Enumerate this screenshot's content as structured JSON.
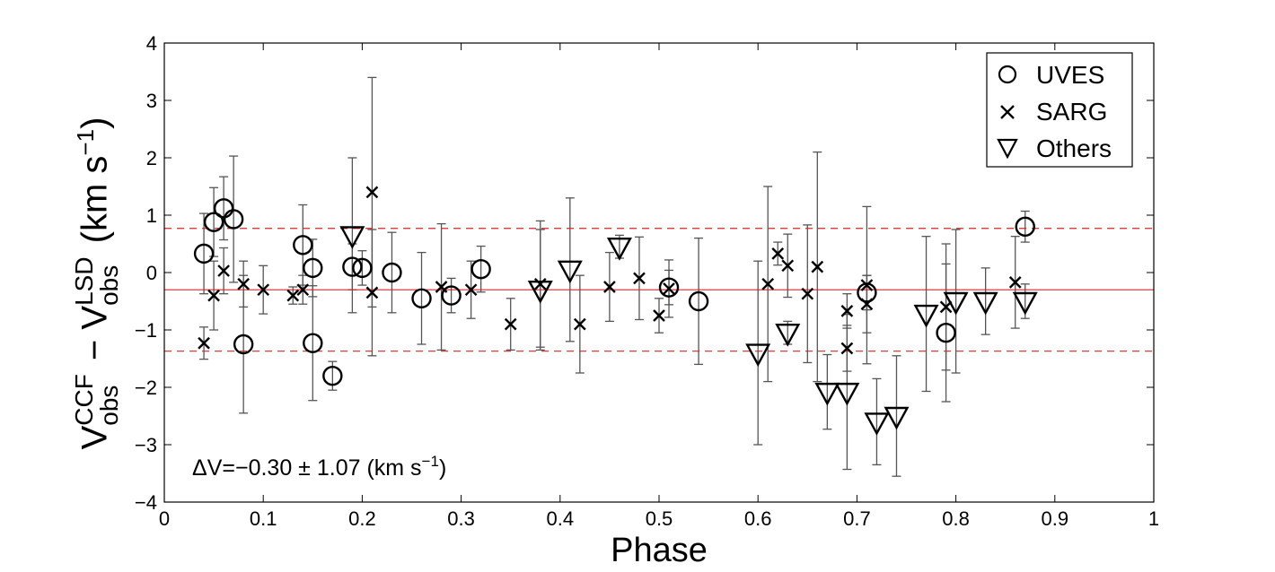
{
  "chart_data": {
    "type": "scatter",
    "xlabel": "Phase",
    "ylabel": {
      "part1_base": "V",
      "part1_sup": "CCF",
      "part1_sub": "obs",
      "minus": " − ",
      "part2_base": "V",
      "part2_sup": "LSD",
      "part2_sub": "obs",
      "units": " (km s",
      "units_sup": "−1",
      "units_end": ")"
    },
    "xlim": [
      0,
      1
    ],
    "ylim": [
      -4,
      4
    ],
    "x_ticks": [
      "0",
      "0.1",
      "0.2",
      "0.3",
      "0.4",
      "0.5",
      "0.6",
      "0.7",
      "0.8",
      "0.9",
      "1"
    ],
    "y_ticks": [
      "−4",
      "−3",
      "−2",
      "−1",
      "0",
      "1",
      "2",
      "3",
      "4"
    ],
    "x_tick_values": [
      0,
      0.1,
      0.2,
      0.3,
      0.4,
      0.5,
      0.6,
      0.7,
      0.8,
      0.9,
      1
    ],
    "y_tick_values": [
      -4,
      -3,
      -2,
      -1,
      0,
      1,
      2,
      3,
      4
    ],
    "mean_line": -0.3,
    "sigma_lines": [
      0.77,
      -1.37
    ],
    "annotation": {
      "text": "ΔV=−0.30 ± 1.07 (km s",
      "sup": "−1",
      "end": ")"
    },
    "legend": {
      "position": "top-right",
      "entries": [
        "UVES",
        "SARG",
        "Others"
      ]
    },
    "series": [
      {
        "name": "UVES",
        "marker": "circle",
        "points": [
          {
            "x": 0.04,
            "y": 0.33,
            "err": 0.7
          },
          {
            "x": 0.05,
            "y": 0.88,
            "err": 0.6
          },
          {
            "x": 0.06,
            "y": 1.12,
            "err": 0.55
          },
          {
            "x": 0.07,
            "y": 0.93,
            "err": 1.1
          },
          {
            "x": 0.08,
            "y": -1.25,
            "err": 1.2
          },
          {
            "x": 0.14,
            "y": 0.48,
            "err": 0.7
          },
          {
            "x": 0.15,
            "y": 0.08,
            "err": 0.5
          },
          {
            "x": 0.15,
            "y": -1.23,
            "err": 1.0
          },
          {
            "x": 0.17,
            "y": -1.8,
            "err": 0.25
          },
          {
            "x": 0.19,
            "y": 0.1,
            "err": 0.4
          },
          {
            "x": 0.2,
            "y": 0.08,
            "err": 0.3
          },
          {
            "x": 0.23,
            "y": 0.0,
            "err": 0.7
          },
          {
            "x": 0.26,
            "y": -0.45,
            "err": 0.8
          },
          {
            "x": 0.29,
            "y": -0.4,
            "err": 0.3
          },
          {
            "x": 0.32,
            "y": 0.06,
            "err": 0.4
          },
          {
            "x": 0.51,
            "y": -0.26,
            "err": 0.3
          },
          {
            "x": 0.54,
            "y": -0.5,
            "err": 1.1
          },
          {
            "x": 0.71,
            "y": -0.35,
            "err": 0.3
          },
          {
            "x": 0.79,
            "y": -1.05,
            "err": 1.2
          },
          {
            "x": 0.87,
            "y": 0.8,
            "err": 0.27
          }
        ]
      },
      {
        "name": "SARG",
        "marker": "x",
        "points": [
          {
            "x": 0.04,
            "y": -1.23,
            "err": 0.28
          },
          {
            "x": 0.05,
            "y": -0.4,
            "err": 0.6
          },
          {
            "x": 0.06,
            "y": 0.03,
            "err": 0.4
          },
          {
            "x": 0.08,
            "y": -0.2,
            "err": 0.4
          },
          {
            "x": 0.1,
            "y": -0.3,
            "err": 0.42
          },
          {
            "x": 0.13,
            "y": -0.4,
            "err": 0.15
          },
          {
            "x": 0.14,
            "y": -0.3,
            "err": 0.25
          },
          {
            "x": 0.21,
            "y": 1.4,
            "err": 2.0
          },
          {
            "x": 0.21,
            "y": -0.35,
            "err": 1.1
          },
          {
            "x": 0.28,
            "y": -0.25,
            "err": 1.1
          },
          {
            "x": 0.31,
            "y": -0.3,
            "err": 0.5
          },
          {
            "x": 0.35,
            "y": -0.9,
            "err": 0.45
          },
          {
            "x": 0.38,
            "y": -0.2,
            "err": 1.1
          },
          {
            "x": 0.42,
            "y": -0.9,
            "err": 0.85
          },
          {
            "x": 0.45,
            "y": -0.25,
            "err": 0.6
          },
          {
            "x": 0.48,
            "y": -0.1,
            "err": 0.72
          },
          {
            "x": 0.5,
            "y": -0.75,
            "err": 0.3
          },
          {
            "x": 0.51,
            "y": -0.28,
            "err": 0.5
          },
          {
            "x": 0.61,
            "y": -0.2,
            "err": 1.7
          },
          {
            "x": 0.62,
            "y": 0.33,
            "err": 0.2
          },
          {
            "x": 0.63,
            "y": 0.12,
            "err": 0.55
          },
          {
            "x": 0.65,
            "y": -0.37,
            "err": 1.2
          },
          {
            "x": 0.66,
            "y": 0.1,
            "err": 2.0
          },
          {
            "x": 0.69,
            "y": -0.67,
            "err": 0.3
          },
          {
            "x": 0.69,
            "y": -1.32,
            "err": 0.4
          },
          {
            "x": 0.71,
            "y": -0.22,
            "err": 1.37
          },
          {
            "x": 0.71,
            "y": -0.55,
            "err": 0.5
          },
          {
            "x": 0.79,
            "y": -0.6,
            "err": 1.1
          },
          {
            "x": 0.86,
            "y": -0.17,
            "err": 0.8
          }
        ]
      },
      {
        "name": "Others",
        "marker": "triangle-down",
        "points": [
          {
            "x": 0.19,
            "y": 0.65,
            "err": 1.35
          },
          {
            "x": 0.38,
            "y": -0.3,
            "err": 1.05
          },
          {
            "x": 0.41,
            "y": 0.05,
            "err": 1.25
          },
          {
            "x": 0.46,
            "y": 0.45,
            "err": 0.2
          },
          {
            "x": 0.6,
            "y": -1.4,
            "err": 1.6
          },
          {
            "x": 0.63,
            "y": -1.05,
            "err": 0.2
          },
          {
            "x": 0.67,
            "y": -2.08,
            "err": 0.65
          },
          {
            "x": 0.69,
            "y": -2.08,
            "err": 1.35
          },
          {
            "x": 0.72,
            "y": -2.6,
            "err": 0.75
          },
          {
            "x": 0.74,
            "y": -2.5,
            "err": 1.05
          },
          {
            "x": 0.77,
            "y": -0.72,
            "err": 1.35
          },
          {
            "x": 0.8,
            "y": -0.5,
            "err": 1.25
          },
          {
            "x": 0.83,
            "y": -0.5,
            "err": 0.58
          },
          {
            "x": 0.87,
            "y": -0.5,
            "err": 0.3
          }
        ]
      }
    ]
  }
}
